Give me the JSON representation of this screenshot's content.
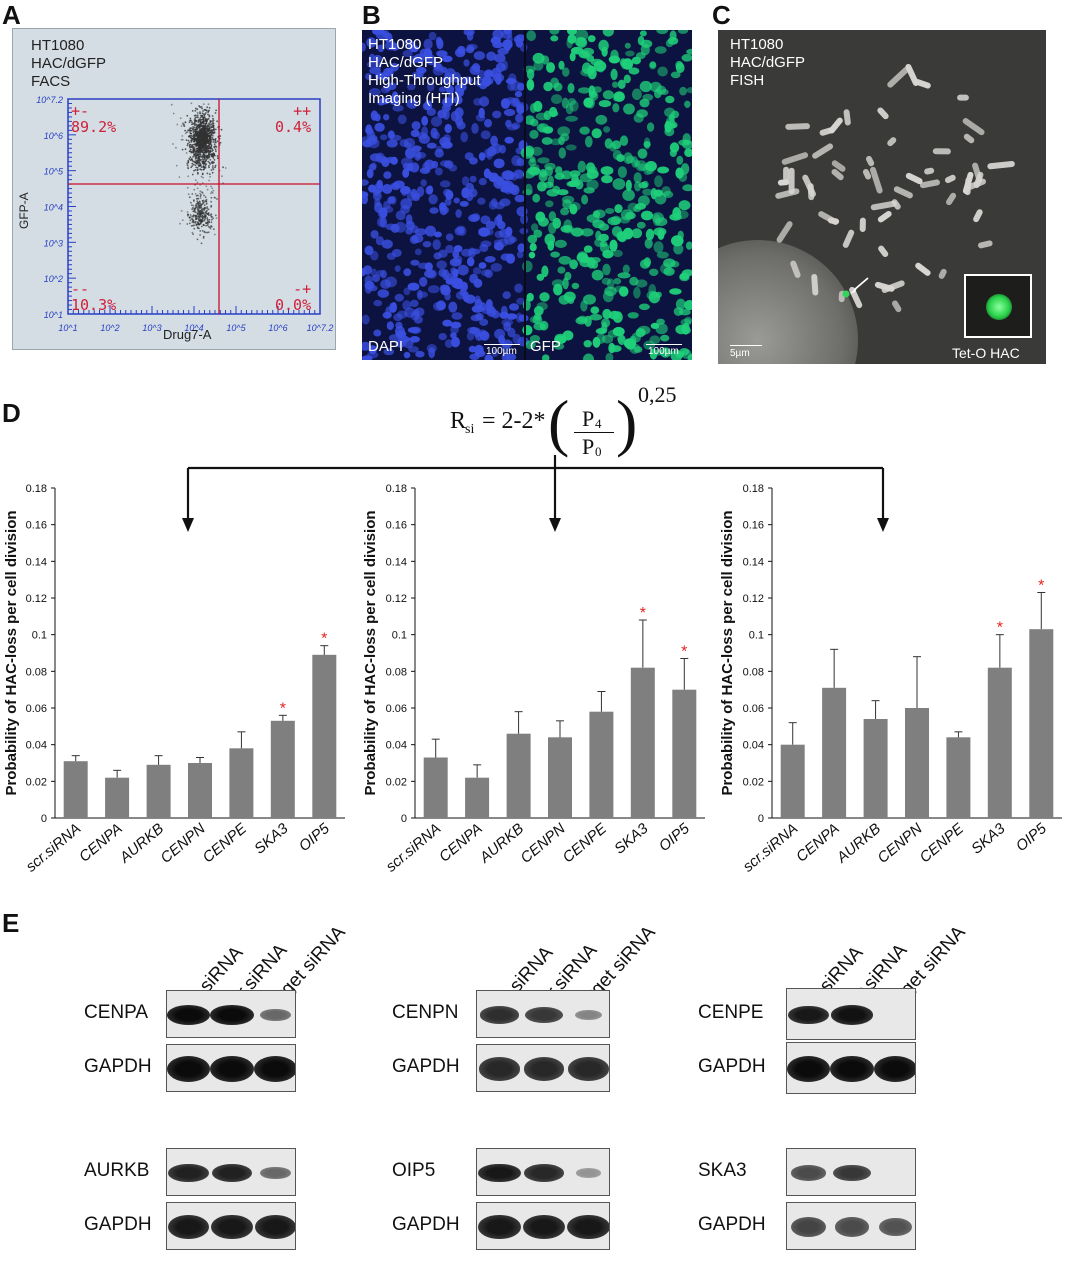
{
  "panel_letters": {
    "a": "A",
    "b": "B",
    "c": "C",
    "d": "D",
    "e": "E"
  },
  "panel_a": {
    "lines": [
      "HT1080",
      "HAC/dGFP",
      "FACS"
    ],
    "y_axis_label": "GFP-A",
    "x_axis_label": "Drug7-A",
    "quadrants": {
      "top_left": {
        "sign": "+-",
        "value": "89.2%"
      },
      "top_right": {
        "sign": "++",
        "value": "0.4%"
      },
      "bottom_left": {
        "sign": "--",
        "value": "10.3%"
      },
      "bottom_right": {
        "sign": "-+",
        "value": "0.0%"
      }
    },
    "y_ticks": [
      "10^7.2",
      "10^6",
      "10^5",
      "10^4",
      "10^3",
      "10^2",
      "10^1"
    ],
    "x_ticks": [
      "10^1",
      "10^2",
      "10^3",
      "10^4",
      "10^5",
      "10^6",
      "10^7.2"
    ],
    "colors": {
      "frame": "#2a3fc4",
      "gate": "#c8102e",
      "dots": "#333333"
    }
  },
  "panel_b": {
    "lines": [
      "HT1080",
      "HAC/dGFP",
      "High-Throughput",
      "Imaging (HTI)"
    ],
    "left_label": "DAPI",
    "right_label": "GFP",
    "scale_left": "100µm",
    "scale_right": "100µm",
    "colors": {
      "dapi": "#3a4fe0",
      "gfp": "#1fd07a"
    }
  },
  "panel_c": {
    "lines": [
      "HT1080",
      "HAC/dGFP",
      "FISH"
    ],
    "scale": "5µm",
    "inset_label": "Tet-O HAC"
  },
  "formula": {
    "lhs": "R",
    "sub": "si",
    "equals": "= 2-2*",
    "numerator": "P",
    "num_sub": "4",
    "denominator": "P",
    "den_sub": "0",
    "exponent": "0,25"
  },
  "chart_data": [
    {
      "type": "bar",
      "ylabel": "Probability of HAC-loss per cell division",
      "categories": [
        "scr.siRNA",
        "CENPA",
        "AURKB",
        "CENPN",
        "CENPE",
        "SKA3",
        "OIP5"
      ],
      "values": [
        0.031,
        0.022,
        0.029,
        0.03,
        0.038,
        0.053,
        0.089
      ],
      "errors": [
        0.003,
        0.004,
        0.005,
        0.003,
        0.009,
        0.003,
        0.005
      ],
      "significant": [
        false,
        false,
        false,
        false,
        false,
        true,
        true
      ],
      "ylim": [
        0,
        0.18
      ],
      "yticks": [
        "0",
        "0.02",
        "0.04",
        "0.06",
        "0.08",
        "0.1",
        "0.12",
        "0.14",
        "0.16",
        "0.18"
      ],
      "marker": "*",
      "bar_color": "#7f7f7f",
      "marker_color": "#e0201a"
    },
    {
      "type": "bar",
      "ylabel": "Probability of HAC-loss per cell division",
      "categories": [
        "scr.siRNA",
        "CENPA",
        "AURKB",
        "CENPN",
        "CENPE",
        "SKA3",
        "OIP5"
      ],
      "values": [
        0.033,
        0.022,
        0.046,
        0.044,
        0.058,
        0.082,
        0.07
      ],
      "errors": [
        0.01,
        0.007,
        0.012,
        0.009,
        0.011,
        0.026,
        0.017
      ],
      "significant": [
        false,
        false,
        false,
        false,
        false,
        true,
        true
      ],
      "ylim": [
        0,
        0.18
      ],
      "yticks": [
        "0",
        "0.02",
        "0.04",
        "0.06",
        "0.08",
        "0.1",
        "0.12",
        "0.14",
        "0.16",
        "0.18"
      ],
      "marker": "*",
      "bar_color": "#7f7f7f",
      "marker_color": "#e0201a"
    },
    {
      "type": "bar",
      "ylabel": "Probability of HAC-loss per cell division",
      "categories": [
        "scr.siRNA",
        "CENPA",
        "AURKB",
        "CENPN",
        "CENPE",
        "SKA3",
        "OIP5"
      ],
      "values": [
        0.04,
        0.071,
        0.054,
        0.06,
        0.044,
        0.082,
        0.103
      ],
      "errors": [
        0.012,
        0.021,
        0.01,
        0.028,
        0.003,
        0.018,
        0.02
      ],
      "significant": [
        false,
        false,
        false,
        false,
        false,
        true,
        true
      ],
      "ylim": [
        0,
        0.18
      ],
      "yticks": [
        "0",
        "0.02",
        "0.04",
        "0.06",
        "0.08",
        "0.1",
        "0.12",
        "0.14",
        "0.16",
        "0.18"
      ],
      "marker": "*",
      "bar_color": "#7f7f7f",
      "marker_color": "#e0201a"
    }
  ],
  "blots": {
    "lanes": [
      "no siRNA",
      "scr.siRNA",
      "target siRNA"
    ],
    "loading_control": "GAPDH",
    "groups": [
      {
        "target": "CENPA",
        "target_levels": [
          1.0,
          1.0,
          0.35
        ],
        "gapdh_levels": [
          1.0,
          1.0,
          1.0
        ]
      },
      {
        "target": "CENPN",
        "target_levels": [
          0.75,
          0.7,
          0.15
        ],
        "gapdh_levels": [
          0.8,
          0.8,
          0.8
        ]
      },
      {
        "target": "CENPE",
        "target_levels": [
          0.9,
          0.95,
          0.0
        ],
        "gapdh_levels": [
          1.0,
          1.0,
          1.0
        ]
      },
      {
        "target": "AURKB",
        "target_levels": [
          0.85,
          0.85,
          0.35
        ],
        "gapdh_levels": [
          0.9,
          0.9,
          0.9
        ]
      },
      {
        "target": "OIP5",
        "target_levels": [
          0.9,
          0.8,
          0.05
        ],
        "gapdh_levels": [
          0.9,
          0.9,
          0.9
        ]
      },
      {
        "target": "SKA3",
        "target_levels": [
          0.55,
          0.7,
          0.0
        ],
        "gapdh_levels": [
          0.6,
          0.55,
          0.5
        ]
      }
    ]
  }
}
